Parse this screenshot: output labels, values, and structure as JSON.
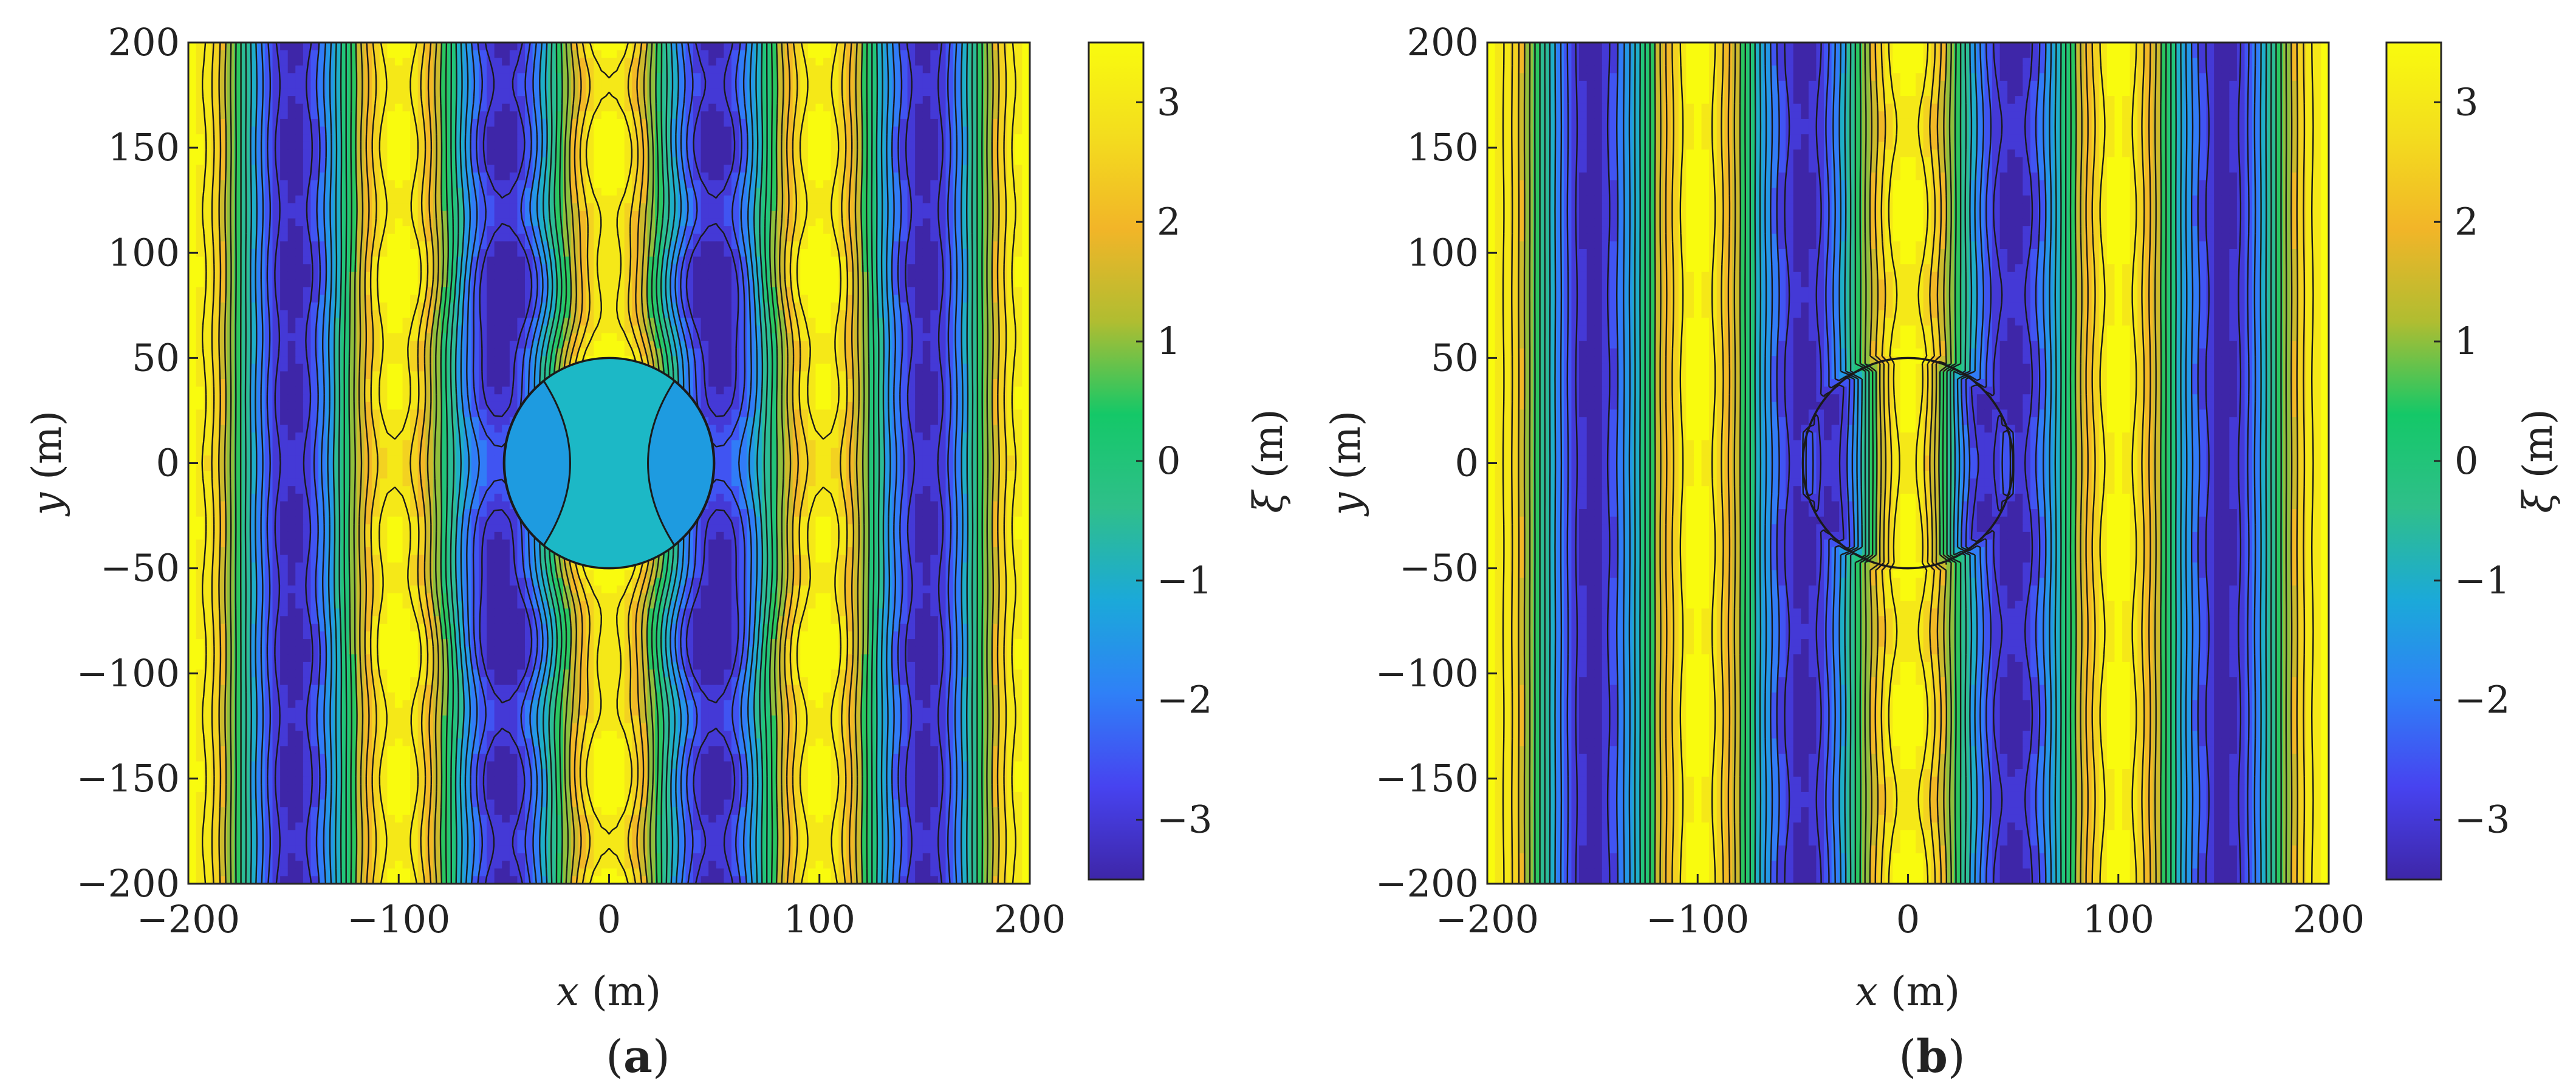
{
  "chart_data": [
    {
      "type": "heatmap",
      "panel_label": "a",
      "title": "",
      "xlabel_symbol": "x",
      "xlabel_unit": " (m)",
      "ylabel_symbol": "y",
      "ylabel_unit": " (m)",
      "xlim": [
        -200,
        200
      ],
      "ylim": [
        -200,
        200
      ],
      "x_ticks": [
        -200,
        -100,
        0,
        100,
        200
      ],
      "y_ticks": [
        -200,
        -150,
        -100,
        -50,
        0,
        50,
        100,
        150,
        200
      ],
      "x_tick_labels": [
        "−200",
        "−100",
        "0",
        "100",
        "200"
      ],
      "y_tick_labels": [
        "−200",
        "−150",
        "−100",
        "−50",
        "0",
        "50",
        "100",
        "150",
        "200"
      ],
      "colorbar": {
        "label_symbol": "ξ",
        "label_unit": " (m)",
        "range": [
          -3.5,
          3.5
        ],
        "ticks": [
          -3,
          -2,
          -1,
          0,
          1,
          2,
          3
        ],
        "tick_labels": [
          "−3",
          "−2",
          "−1",
          "0",
          "1",
          "2",
          "3"
        ]
      },
      "field": "surface elevation ξ (m) — standing-wave pattern around a circular body of radius 50 m at the origin",
      "body": {
        "cx": 0,
        "cy": 0,
        "radius": 50,
        "filled": true
      },
      "contour_levels": [
        -3,
        -2.5,
        -2,
        -1.5,
        -1,
        -0.5,
        0,
        0.5,
        1,
        1.5,
        2,
        2.5,
        3
      ]
    },
    {
      "type": "heatmap",
      "panel_label": "b",
      "title": "",
      "xlabel_symbol": "x",
      "xlabel_unit": " (m)",
      "ylabel_symbol": "y",
      "ylabel_unit": " (m)",
      "xlim": [
        -200,
        200
      ],
      "ylim": [
        -200,
        200
      ],
      "x_ticks": [
        -200,
        -100,
        0,
        100,
        200
      ],
      "y_ticks": [
        -200,
        -150,
        -100,
        -50,
        0,
        50,
        100,
        150,
        200
      ],
      "x_tick_labels": [
        "−200",
        "−100",
        "0",
        "100",
        "200"
      ],
      "y_tick_labels": [
        "−200",
        "−150",
        "−100",
        "−50",
        "0",
        "50",
        "100",
        "150",
        "200"
      ],
      "colorbar": {
        "label_symbol": "ξ",
        "label_unit": " (m)",
        "range": [
          -3.5,
          3.5
        ],
        "ticks": [
          -3,
          -2,
          -1,
          0,
          1,
          2,
          3
        ],
        "tick_labels": [
          "−3",
          "−2",
          "−1",
          "0",
          "1",
          "2",
          "3"
        ]
      },
      "field": "surface elevation ξ (m) — wave pattern passing through a submerged circular region of radius 50 m at the origin",
      "body": {
        "cx": 0,
        "cy": 0,
        "radius": 50,
        "filled": false
      },
      "contour_levels": [
        -3,
        -2.5,
        -2,
        -1.5,
        -1,
        -0.5,
        0,
        0.5,
        1,
        1.5,
        2,
        2.5,
        3
      ]
    }
  ],
  "colors": {
    "stops": [
      "#3e26a8",
      "#4743f0",
      "#2f80f7",
      "#1ba9d9",
      "#2fbf8a",
      "#14c868",
      "#b0bd31",
      "#f2b528",
      "#f3dd1e",
      "#f9fb0e"
    ],
    "body_fill": "#1cb8c6",
    "axis": "#262626"
  }
}
